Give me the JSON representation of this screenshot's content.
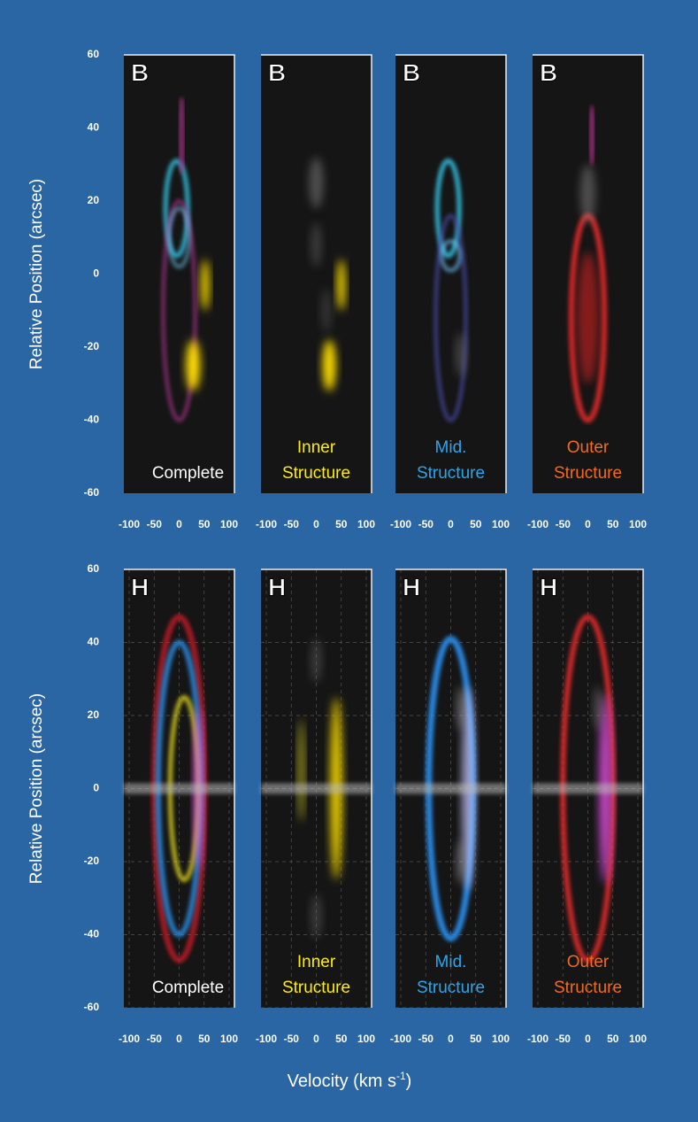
{
  "rows": [
    {
      "y_axis_label": "Relative Position (arcsec)",
      "yticks": [
        60,
        40,
        20,
        0,
        -20,
        -40,
        -60
      ],
      "xticks": [
        -100,
        -50,
        0,
        50,
        100
      ],
      "panels": [
        {
          "letter": "B",
          "label": [
            "Complete"
          ],
          "label_color": "#ffffff"
        },
        {
          "letter": "B",
          "label": [
            "Inner",
            "Structure"
          ],
          "label_color": "#ffee00"
        },
        {
          "letter": "B",
          "label": [
            "Mid.",
            "Structure"
          ],
          "label_color": "#2aa6ee"
        },
        {
          "letter": "B",
          "label": [
            "Outer",
            "Structure"
          ],
          "label_color": "#f26a1b"
        }
      ]
    },
    {
      "y_axis_label": "Relative Position (arcsec)",
      "yticks": [
        60,
        40,
        20,
        0,
        -20,
        -40,
        -60
      ],
      "xticks": [
        -100,
        -50,
        0,
        50,
        100
      ],
      "panels": [
        {
          "letter": "H",
          "label": [
            "Complete"
          ],
          "label_color": "#ffffff"
        },
        {
          "letter": "H",
          "label": [
            "Inner",
            "Structure"
          ],
          "label_color": "#ffee00"
        },
        {
          "letter": "H",
          "label": [
            "Mid.",
            "Structure"
          ],
          "label_color": "#2aa6ee"
        },
        {
          "letter": "H",
          "label": [
            "Outer",
            "Structure"
          ],
          "label_color": "#f26a1b"
        }
      ]
    }
  ],
  "x_axis_label": {
    "text": "Velocity (km s",
    "superscript": "-1",
    "close": ")"
  }
}
